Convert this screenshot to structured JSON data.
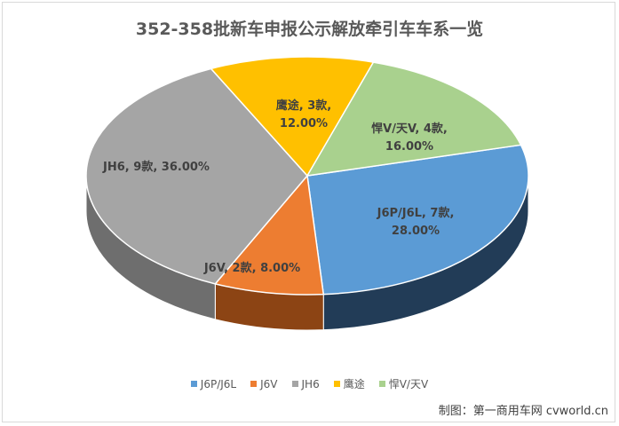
{
  "chart_data": {
    "type": "pie",
    "title": "352-358批新车申报公示解放牵引车车系一览",
    "slices": [
      {
        "name": "J6P/J6L",
        "count": "7款",
        "value": 28.0,
        "color": "#5b9bd5",
        "side": "#223c57",
        "label": "J6P/J6L, 7款, 28.00%"
      },
      {
        "name": "J6V",
        "count": "2款",
        "value": 8.0,
        "color": "#ed7d31",
        "side": "#8c4414",
        "label": "J6V, 2款, 8.00%"
      },
      {
        "name": "JH6",
        "count": "9款",
        "value": 36.0,
        "color": "#a5a5a5",
        "side": "#6e6e6e",
        "label": "JH6, 9款, 36.00%"
      },
      {
        "name": "鹰途",
        "count": "3款",
        "value": 12.0,
        "color": "#ffc000",
        "side": "#a87d00",
        "label": "鹰途, 3款, 12.00%"
      },
      {
        "name": "悍V/天V",
        "count": "4款",
        "value": 16.0,
        "color": "#a9d18e",
        "side": "#6a8a55",
        "label": "悍V/天V, 4款, 16.00%"
      }
    ],
    "legend_position": "bottom"
  },
  "credit": "制图：第一商用车网 cvworld.cn"
}
